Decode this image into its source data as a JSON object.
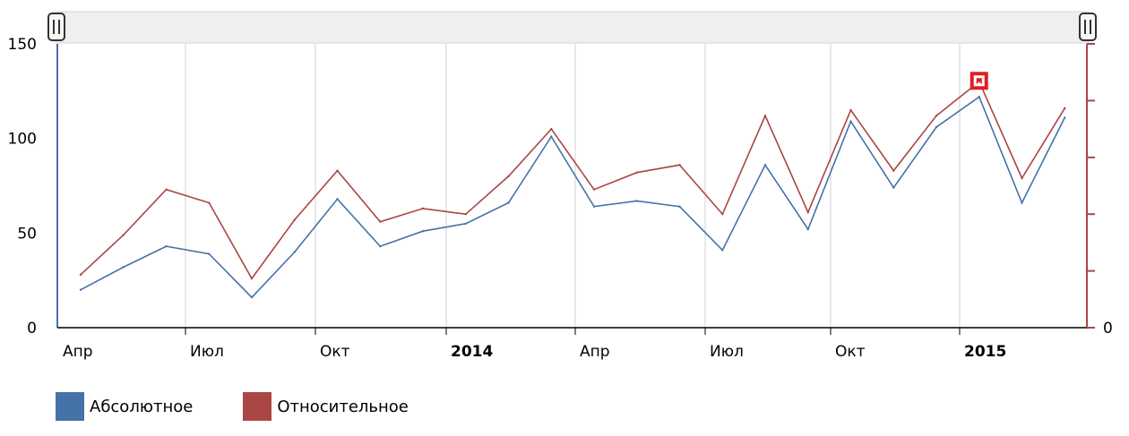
{
  "chart_data": {
    "type": "line",
    "x": [
      "2013-04",
      "2013-05",
      "2013-06",
      "2013-07",
      "2013-08",
      "2013-09",
      "2013-10",
      "2013-11",
      "2013-12",
      "2014-01",
      "2014-02",
      "2014-03",
      "2014-04",
      "2014-05",
      "2014-06",
      "2014-07",
      "2014-08",
      "2014-09",
      "2014-10",
      "2014-11",
      "2014-12",
      "2015-01",
      "2015-02",
      "2015-03"
    ],
    "x_tick_labels": [
      {
        "label": "Апр",
        "bold": false
      },
      {
        "label": "Июл",
        "bold": false
      },
      {
        "label": "Окт",
        "bold": false
      },
      {
        "label": "2014",
        "bold": true
      },
      {
        "label": "Апр",
        "bold": false
      },
      {
        "label": "Июл",
        "bold": false
      },
      {
        "label": "Окт",
        "bold": false
      },
      {
        "label": "2015",
        "bold": true
      }
    ],
    "y_left": {
      "range": [
        0,
        150
      ],
      "ticks": [
        "0",
        "50",
        "100",
        "150"
      ]
    },
    "y_right": {
      "ticks": [
        "0"
      ]
    },
    "series": [
      {
        "name": "Абсолютное",
        "color": "#4572a7",
        "values": [
          20,
          32,
          43,
          39,
          16,
          40,
          68,
          43,
          51,
          55,
          66,
          101,
          64,
          67,
          64,
          41,
          86,
          52,
          109,
          74,
          106,
          122,
          66,
          111
        ]
      },
      {
        "name": "Относительное",
        "color": "#aa4643",
        "values": [
          28,
          49,
          73,
          66,
          26,
          57,
          83,
          56,
          63,
          60,
          80,
          105,
          73,
          82,
          86,
          60,
          112,
          61,
          115,
          83,
          112,
          130,
          79,
          116
        ]
      }
    ],
    "highlight": {
      "series": 1,
      "index": 21,
      "color": "#e01f1f",
      "icon": "flag-marker-icon"
    },
    "grid": true,
    "legend": "bottom-left",
    "navigator": {
      "handle_icon": "grip-handle-icon"
    }
  }
}
